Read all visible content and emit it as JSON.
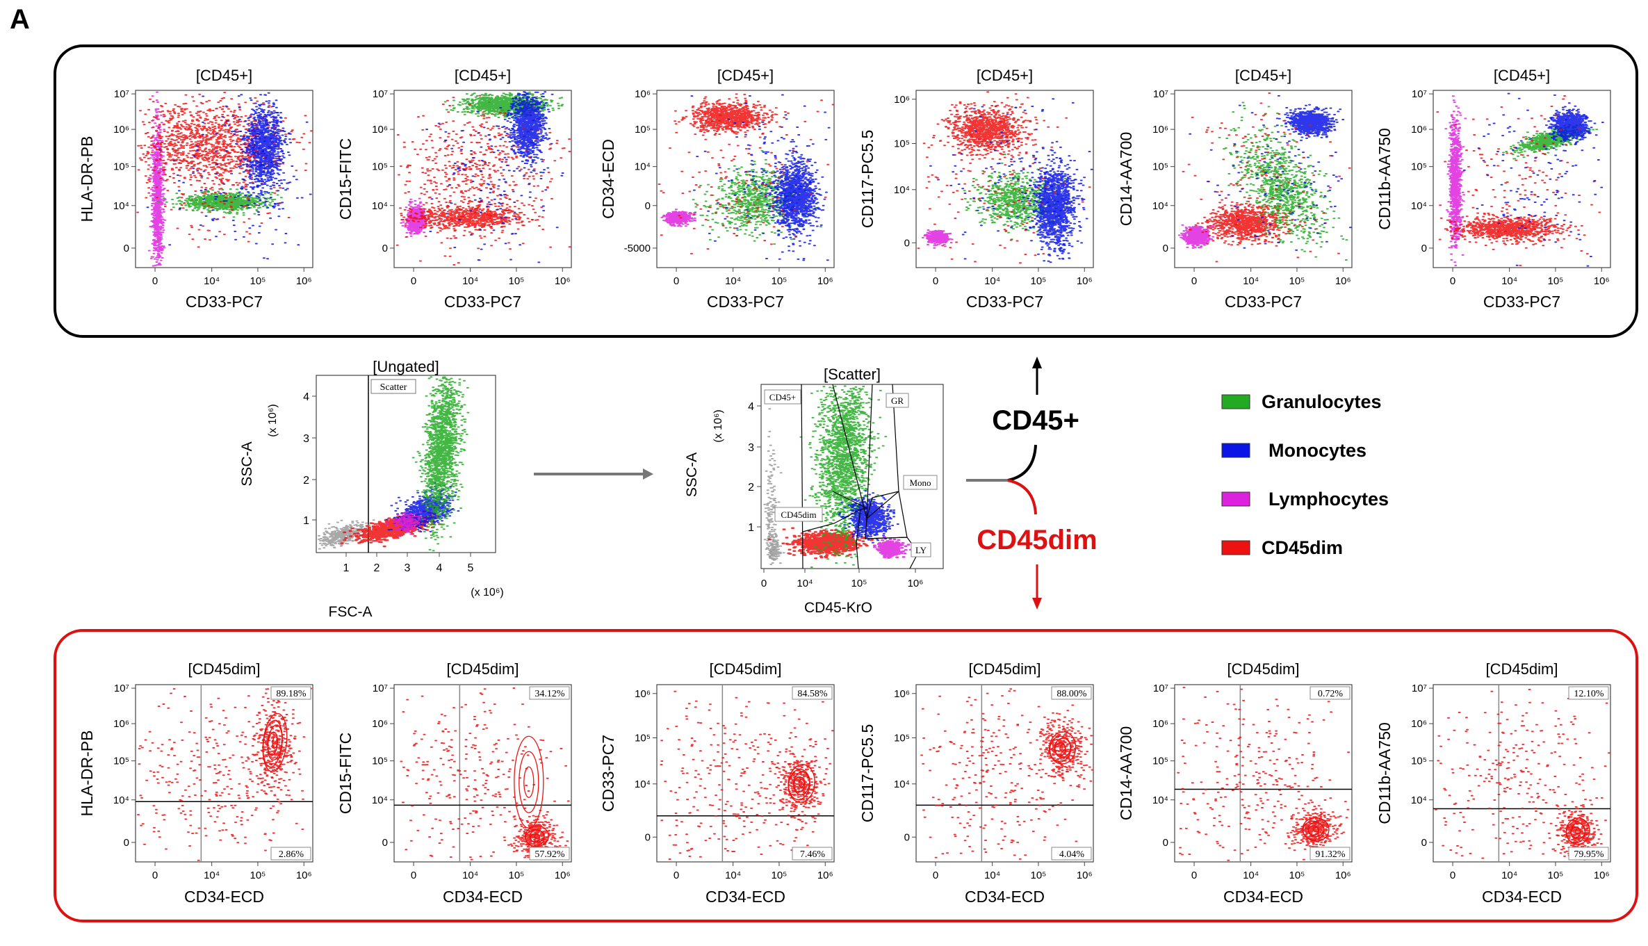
{
  "panel_letter": "A",
  "colors": {
    "granulocytes": "#22aa22",
    "monocytes": "#0a14e6",
    "lymphocytes": "#dd22dd",
    "cd45dim": "#ee1111",
    "ungated": "#999999",
    "top_box": "#000000",
    "bottom_box": "#dd1111",
    "arrow_gray": "#777777"
  },
  "top_row": {
    "plots": [
      {
        "title": "[CD45+]",
        "xlabel": "CD33-PC7",
        "ylabel": "HLA-DR-PB",
        "xticks": [
          "0",
          "10⁴",
          "10⁵",
          "10⁶"
        ],
        "yticks": [
          "10⁷",
          "10⁶",
          "10⁵",
          "10⁴",
          "0"
        ]
      },
      {
        "title": "[CD45+]",
        "xlabel": "CD33-PC7",
        "ylabel": "CD15-FITC",
        "xticks": [
          "0",
          "10⁴",
          "10⁵",
          "10⁶"
        ],
        "yticks": [
          "10⁷",
          "10⁶",
          "10⁵",
          "10⁴",
          "0"
        ]
      },
      {
        "title": "[CD45+]",
        "xlabel": "CD33-PC7",
        "ylabel": "CD34-ECD",
        "xticks": [
          "0",
          "10⁴",
          "10⁵",
          "10⁶"
        ],
        "yticks": [
          "10⁶",
          "10⁵",
          "10⁴",
          "0",
          "-5000"
        ]
      },
      {
        "title": "[CD45+]",
        "xlabel": "CD33-PC7",
        "ylabel": "CD117-PC5.5",
        "xticks": [
          "0",
          "10⁴",
          "10⁵",
          "10⁶"
        ],
        "yticks": [
          "10⁶",
          "10⁵",
          "10⁴",
          "0"
        ]
      },
      {
        "title": "[CD45+]",
        "xlabel": "CD33-PC7",
        "ylabel": "CD14-AA700",
        "xticks": [
          "0",
          "10⁴",
          "10⁵",
          "10⁶"
        ],
        "yticks": [
          "10⁷",
          "10⁶",
          "10⁵",
          "10⁴",
          "0"
        ]
      },
      {
        "title": "[CD45+]",
        "xlabel": "CD33-PC7",
        "ylabel": "CD11b-AA750",
        "xticks": [
          "0",
          "10⁴",
          "10⁵",
          "10⁶"
        ],
        "yticks": [
          "10⁷",
          "10⁶",
          "10⁵",
          "10⁴",
          "0"
        ]
      }
    ]
  },
  "middle": {
    "ungated": {
      "title": "[Ungated]",
      "gate_label": "Scatter",
      "xlabel": "FSC-A",
      "ylabel": "SSC-A",
      "xscale": "(x 10⁶)",
      "yscale": "(x 10⁶)",
      "xticks": [
        "1",
        "2",
        "3",
        "4",
        "5"
      ],
      "yticks": [
        "4",
        "3",
        "2",
        "1"
      ]
    },
    "scatter": {
      "title": "[Scatter]",
      "xlabel": "CD45-KrO",
      "ylabel": "SSC-A",
      "yscale": "(x 10⁶)",
      "xticks": [
        "0",
        "10⁴",
        "10⁵",
        "10⁶"
      ],
      "yticks": [
        "4",
        "3",
        "2",
        "1"
      ],
      "gates": [
        "CD45+",
        "GR",
        "Mono",
        "CD45dim",
        "LY"
      ]
    },
    "branch_up": "CD45+",
    "branch_down": "CD45dim"
  },
  "legend": [
    {
      "label": "Granulocytes",
      "color": "#22aa22"
    },
    {
      "label": "Monocytes",
      "color": "#0a14e6"
    },
    {
      "label": "Lymphocytes",
      "color": "#dd22dd"
    },
    {
      "label": "CD45dim",
      "color": "#ee1111"
    }
  ],
  "bottom_row": {
    "plots": [
      {
        "title": "[CD45dim]",
        "xlabel": "CD34-ECD",
        "ylabel": "HLA-DR-PB",
        "ur": "89.18%",
        "lr": "2.86%",
        "xticks": [
          "0",
          "10⁴",
          "10⁵",
          "10⁶"
        ],
        "yticks": [
          "10⁷",
          "10⁶",
          "10⁵",
          "10⁴",
          "0"
        ]
      },
      {
        "title": "[CD45dim]",
        "xlabel": "CD34-ECD",
        "ylabel": "CD15-FITC",
        "ur": "34.12%",
        "lr": "57.92%",
        "xticks": [
          "0",
          "10⁴",
          "10⁵",
          "10⁶"
        ],
        "yticks": [
          "10⁷",
          "10⁶",
          "10⁵",
          "10⁴",
          "0"
        ]
      },
      {
        "title": "[CD45dim]",
        "xlabel": "CD34-ECD",
        "ylabel": "CD33-PC7",
        "ur": "84.58%",
        "lr": "7.46%",
        "xticks": [
          "0",
          "10⁴",
          "10⁵",
          "10⁶"
        ],
        "yticks": [
          "10⁶",
          "10⁵",
          "10⁴",
          "0"
        ]
      },
      {
        "title": "[CD45dim]",
        "xlabel": "CD34-ECD",
        "ylabel": "CD117-PC5.5",
        "ur": "88.00%",
        "lr": "4.04%",
        "xticks": [
          "0",
          "10⁴",
          "10⁵",
          "10⁶"
        ],
        "yticks": [
          "10⁶",
          "10⁵",
          "10⁴",
          "0"
        ]
      },
      {
        "title": "[CD45dim]",
        "xlabel": "CD34-ECD",
        "ylabel": "CD14-AA700",
        "ur": "0.72%",
        "lr": "91.32%",
        "xticks": [
          "0",
          "10⁴",
          "10⁵",
          "10⁶"
        ],
        "yticks": [
          "10⁷",
          "10⁶",
          "10⁵",
          "10⁴",
          "0"
        ]
      },
      {
        "title": "[CD45dim]",
        "xlabel": "CD34-ECD",
        "ylabel": "CD11b-AA750",
        "ur": "12.10%",
        "lr": "79.95%",
        "xticks": [
          "0",
          "10⁴",
          "10⁵",
          "10⁶"
        ],
        "yticks": [
          "10⁷",
          "10⁶",
          "10⁵",
          "10⁴",
          "0"
        ]
      }
    ]
  }
}
